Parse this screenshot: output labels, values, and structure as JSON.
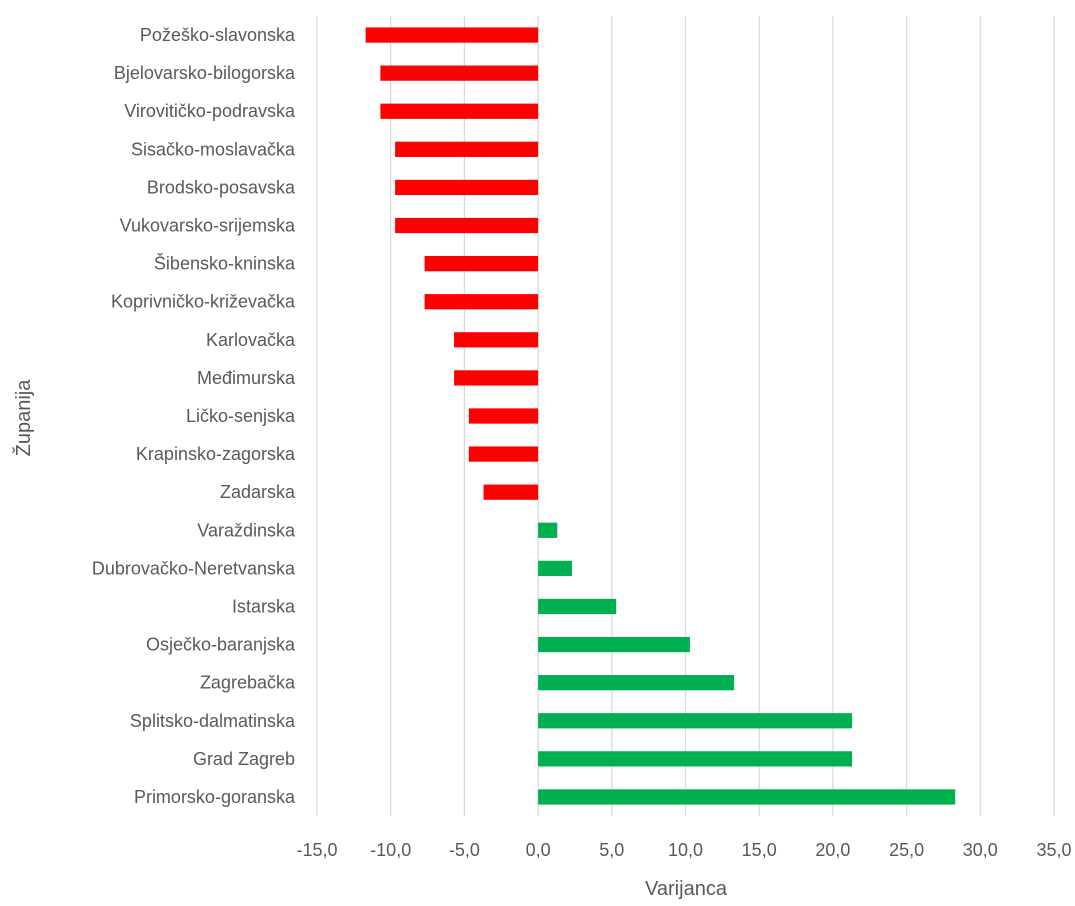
{
  "chart_data": {
    "type": "bar",
    "orientation": "horizontal",
    "xlabel": "Varijanca",
    "ylabel": "Županija",
    "xlim": [
      -15,
      35
    ],
    "xticks": [
      "-15,0",
      "-10,0",
      "-5,0",
      "0,0",
      "5,0",
      "10,0",
      "15,0",
      "20,0",
      "25,0",
      "30,0",
      "35,0"
    ],
    "grid": "vertical",
    "legend": "none",
    "colors": {
      "negative": "#ff0000",
      "positive": "#00b050",
      "grid": "#d9d9d9",
      "text": "#595959"
    },
    "categories": [
      "Požeško-slavonska",
      "Bjelovarsko-bilogorska",
      "Virovitičko-podravska",
      "Sisačko-moslavačka",
      "Brodsko-posavska",
      "Vukovarsko-srijemska",
      "Šibensko-kninska",
      "Koprivničko-križevačka",
      "Karlovačka",
      "Međimurska",
      "Ličko-senjska",
      "Krapinsko-zagorska",
      "Zadarska",
      "Varaždinska",
      "Dubrovačko-Neretvanska",
      "Istarska",
      "Osječko-baranjska",
      "Zagrebačka",
      "Splitsko-dalmatinska",
      "Grad Zagreb",
      "Primorsko-goranska"
    ],
    "values": [
      -11.7,
      -10.7,
      -10.7,
      -9.7,
      -9.7,
      -9.7,
      -7.7,
      -7.7,
      -5.7,
      -5.7,
      -4.7,
      -4.7,
      -3.7,
      1.3,
      2.3,
      5.3,
      10.3,
      13.3,
      21.3,
      21.3,
      28.3
    ]
  }
}
